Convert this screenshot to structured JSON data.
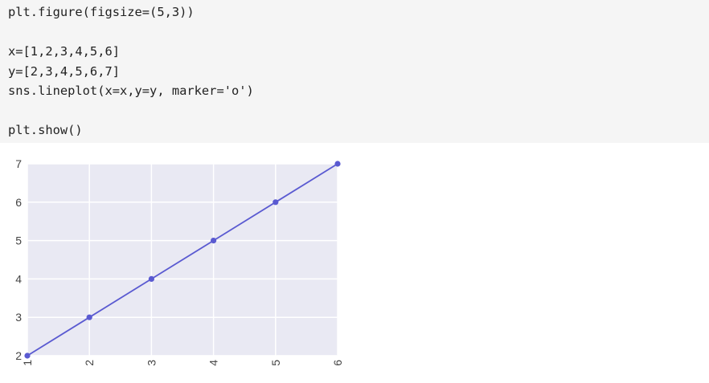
{
  "code_cell": {
    "lines": [
      "plt.figure(figsize=(5,3))",
      "",
      "x=[1,2,3,4,5,6]",
      "y=[2,3,4,5,6,7]",
      "sns.lineplot(x=x,y=y, marker='o')",
      "",
      "plt.show()"
    ]
  },
  "chart_data": {
    "type": "line",
    "x": [
      1,
      2,
      3,
      4,
      5,
      6
    ],
    "series": [
      {
        "values": [
          2,
          3,
          4,
          5,
          6,
          7
        ],
        "marker": "o"
      }
    ],
    "xlim": [
      1,
      6
    ],
    "ylim": [
      2,
      7
    ],
    "xticks": [
      "1",
      "2",
      "3",
      "4",
      "5",
      "6"
    ],
    "yticks": [
      "2",
      "3",
      "4",
      "5",
      "6",
      "7"
    ],
    "xlabel": "",
    "ylabel": "",
    "title": "",
    "grid": true,
    "colors": {
      "line": "#5a5ad1",
      "plot_background": "#e9e9f3",
      "grid": "#ffffff"
    }
  }
}
